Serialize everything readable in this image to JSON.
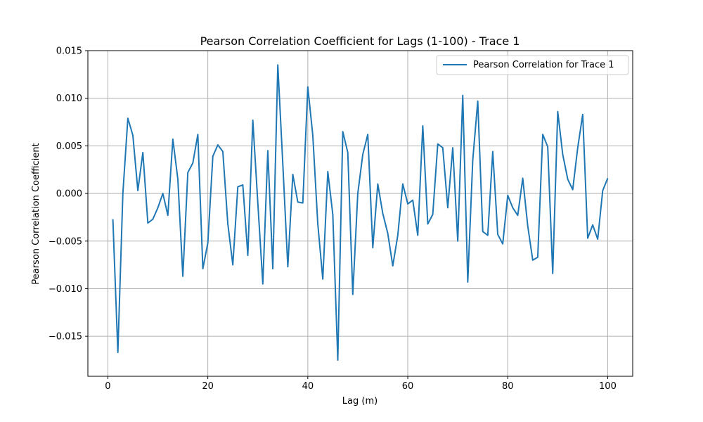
{
  "chart_data": {
    "type": "line",
    "title": "Pearson Correlation Coefficient for Lags (1-100) - Trace 1",
    "xlabel": "Lag (m)",
    "ylabel": "Pearson Correlation Coefficient",
    "xlim": [
      -4,
      105
    ],
    "ylim": [
      -0.0192,
      0.015
    ],
    "grid": true,
    "legend_position": "top-right",
    "x_ticks": [
      0,
      20,
      40,
      60,
      80,
      100
    ],
    "x_tick_labels": [
      "0",
      "20",
      "40",
      "60",
      "80",
      "100"
    ],
    "y_ticks": [
      -0.015,
      -0.01,
      -0.005,
      0.0,
      0.005,
      0.01,
      0.015
    ],
    "y_tick_labels": [
      "−0.015",
      "−0.010",
      "−0.005",
      "0.000",
      "0.005",
      "0.010",
      "0.015"
    ],
    "series": [
      {
        "name": "Pearson Correlation for Trace 1",
        "color": "#1f77b4",
        "x": [
          1,
          2,
          3,
          4,
          5,
          6,
          7,
          8,
          9,
          10,
          11,
          12,
          13,
          14,
          15,
          16,
          17,
          18,
          19,
          20,
          21,
          22,
          23,
          24,
          25,
          26,
          27,
          28,
          29,
          30,
          31,
          32,
          33,
          34,
          35,
          36,
          37,
          38,
          39,
          40,
          41,
          42,
          43,
          44,
          45,
          46,
          47,
          48,
          49,
          50,
          51,
          52,
          53,
          54,
          55,
          56,
          57,
          58,
          59,
          60,
          61,
          62,
          63,
          64,
          65,
          66,
          67,
          68,
          69,
          70,
          71,
          72,
          73,
          74,
          75,
          76,
          77,
          78,
          79,
          80,
          81,
          82,
          83,
          84,
          85,
          86,
          87,
          88,
          89,
          90,
          91,
          92,
          93,
          94,
          95,
          96,
          97,
          98,
          99,
          100
        ],
        "y": [
          -0.0027,
          -0.0167,
          0.0,
          0.0079,
          0.0061,
          0.0003,
          0.0043,
          -0.0031,
          -0.0027,
          -0.0015,
          0.0,
          -0.0023,
          0.0057,
          0.0015,
          -0.0087,
          0.0022,
          0.0032,
          0.0062,
          -0.0079,
          -0.0052,
          0.0039,
          0.0051,
          0.0044,
          -0.0032,
          -0.0075,
          0.0007,
          0.0009,
          -0.0065,
          0.0077,
          -0.001,
          -0.0095,
          0.0045,
          -0.0079,
          0.0135,
          0.0031,
          -0.0077,
          0.002,
          -0.0009,
          -0.001,
          0.0112,
          0.0061,
          -0.0032,
          -0.009,
          0.0023,
          -0.0022,
          -0.0175,
          0.0065,
          0.0043,
          -0.0106,
          0.0,
          0.0041,
          0.0062,
          -0.0057,
          0.001,
          -0.0021,
          -0.0042,
          -0.0076,
          -0.0044,
          0.001,
          -0.0011,
          -0.0007,
          -0.0044,
          0.0071,
          -0.0032,
          -0.0022,
          0.0052,
          0.0048,
          -0.0015,
          0.0048,
          -0.005,
          0.0103,
          -0.0093,
          0.0035,
          0.0097,
          -0.004,
          -0.0044,
          0.0044,
          -0.0043,
          -0.0053,
          -0.0002,
          -0.0015,
          -0.0023,
          0.0016,
          -0.0034,
          -0.007,
          -0.0067,
          0.0062,
          0.0049,
          -0.0084,
          0.0086,
          0.0041,
          0.0015,
          0.0004,
          0.0048,
          0.0083,
          -0.0047,
          -0.0033,
          -0.0048,
          0.0003,
          0.0016
        ]
      }
    ]
  }
}
